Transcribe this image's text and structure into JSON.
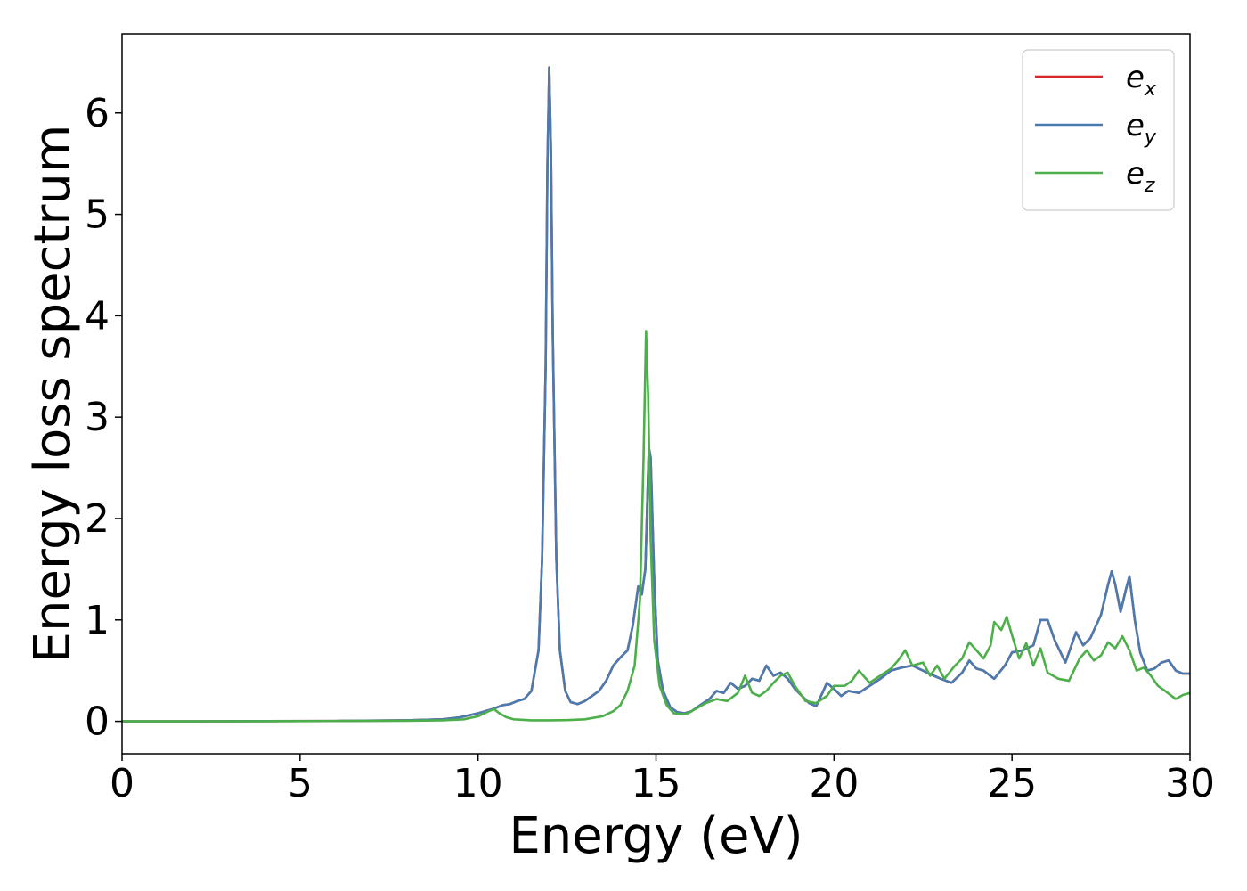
{
  "chart_data": {
    "type": "line",
    "title": "",
    "xlabel": "Energy (eV)",
    "ylabel": "Energy loss spectrum",
    "xlim": [
      0,
      30
    ],
    "ylim": [
      -0.32,
      6.78
    ],
    "xticks": [
      0,
      5,
      10,
      15,
      20,
      25,
      30
    ],
    "yticks": [
      0,
      1,
      2,
      3,
      4,
      5,
      6
    ],
    "grid": false,
    "legend_position": "top-right",
    "series": [
      {
        "name": "e_x",
        "legend_base": "e",
        "legend_sub": "x",
        "color": "#d62728",
        "points": [
          [
            0,
            0.0
          ],
          [
            2,
            0.0
          ],
          [
            4,
            0.002
          ],
          [
            6,
            0.004
          ],
          [
            8,
            0.01
          ],
          [
            9,
            0.02
          ],
          [
            9.5,
            0.04
          ],
          [
            10,
            0.08
          ],
          [
            10.4,
            0.12
          ],
          [
            10.7,
            0.16
          ],
          [
            10.9,
            0.17
          ],
          [
            11.1,
            0.2
          ],
          [
            11.3,
            0.22
          ],
          [
            11.5,
            0.3
          ],
          [
            11.7,
            0.7
          ],
          [
            11.8,
            1.6
          ],
          [
            11.9,
            3.5
          ],
          [
            11.95,
            5.5
          ],
          [
            12.0,
            6.45
          ],
          [
            12.05,
            5.6
          ],
          [
            12.1,
            3.8
          ],
          [
            12.2,
            1.6
          ],
          [
            12.3,
            0.7
          ],
          [
            12.45,
            0.3
          ],
          [
            12.6,
            0.19
          ],
          [
            12.8,
            0.17
          ],
          [
            13.0,
            0.2
          ],
          [
            13.2,
            0.25
          ],
          [
            13.4,
            0.3
          ],
          [
            13.6,
            0.4
          ],
          [
            13.8,
            0.55
          ],
          [
            14.0,
            0.63
          ],
          [
            14.2,
            0.7
          ],
          [
            14.35,
            0.95
          ],
          [
            14.5,
            1.33
          ],
          [
            14.6,
            1.25
          ],
          [
            14.7,
            1.5
          ],
          [
            14.8,
            2.7
          ],
          [
            14.85,
            2.6
          ],
          [
            14.95,
            1.4
          ],
          [
            15.05,
            0.6
          ],
          [
            15.2,
            0.3
          ],
          [
            15.4,
            0.14
          ],
          [
            15.6,
            0.09
          ],
          [
            15.8,
            0.08
          ],
          [
            16.0,
            0.1
          ],
          [
            16.2,
            0.15
          ],
          [
            16.5,
            0.22
          ],
          [
            16.7,
            0.3
          ],
          [
            16.9,
            0.28
          ],
          [
            17.1,
            0.38
          ],
          [
            17.3,
            0.32
          ],
          [
            17.5,
            0.35
          ],
          [
            17.7,
            0.42
          ],
          [
            17.9,
            0.4
          ],
          [
            18.1,
            0.55
          ],
          [
            18.3,
            0.45
          ],
          [
            18.5,
            0.48
          ],
          [
            18.7,
            0.42
          ],
          [
            18.9,
            0.32
          ],
          [
            19.1,
            0.25
          ],
          [
            19.3,
            0.18
          ],
          [
            19.5,
            0.15
          ],
          [
            19.7,
            0.3
          ],
          [
            19.8,
            0.38
          ],
          [
            20.0,
            0.32
          ],
          [
            20.2,
            0.25
          ],
          [
            20.4,
            0.3
          ],
          [
            20.7,
            0.28
          ],
          [
            21.0,
            0.35
          ],
          [
            21.3,
            0.42
          ],
          [
            21.6,
            0.5
          ],
          [
            21.9,
            0.53
          ],
          [
            22.2,
            0.55
          ],
          [
            22.5,
            0.5
          ],
          [
            22.8,
            0.45
          ],
          [
            23.0,
            0.42
          ],
          [
            23.3,
            0.38
          ],
          [
            23.6,
            0.48
          ],
          [
            23.8,
            0.6
          ],
          [
            24.0,
            0.52
          ],
          [
            24.2,
            0.5
          ],
          [
            24.5,
            0.42
          ],
          [
            24.8,
            0.55
          ],
          [
            25.0,
            0.68
          ],
          [
            25.3,
            0.7
          ],
          [
            25.6,
            0.75
          ],
          [
            25.8,
            1.0
          ],
          [
            26.0,
            1.0
          ],
          [
            26.2,
            0.8
          ],
          [
            26.5,
            0.58
          ],
          [
            26.8,
            0.88
          ],
          [
            27.0,
            0.75
          ],
          [
            27.2,
            0.82
          ],
          [
            27.5,
            1.05
          ],
          [
            27.7,
            1.35
          ],
          [
            27.8,
            1.48
          ],
          [
            27.9,
            1.35
          ],
          [
            28.05,
            1.08
          ],
          [
            28.2,
            1.3
          ],
          [
            28.3,
            1.43
          ],
          [
            28.45,
            1.0
          ],
          [
            28.6,
            0.68
          ],
          [
            28.8,
            0.5
          ],
          [
            29.0,
            0.52
          ],
          [
            29.2,
            0.58
          ],
          [
            29.4,
            0.6
          ],
          [
            29.6,
            0.5
          ],
          [
            29.8,
            0.47
          ],
          [
            30.0,
            0.47
          ]
        ]
      },
      {
        "name": "e_y",
        "legend_base": "e",
        "legend_sub": "y",
        "color": "#4a7bb0",
        "points": [
          [
            0,
            0.0
          ],
          [
            2,
            0.0
          ],
          [
            4,
            0.002
          ],
          [
            6,
            0.004
          ],
          [
            8,
            0.01
          ],
          [
            9,
            0.02
          ],
          [
            9.5,
            0.04
          ],
          [
            10,
            0.08
          ],
          [
            10.4,
            0.12
          ],
          [
            10.7,
            0.16
          ],
          [
            10.9,
            0.17
          ],
          [
            11.1,
            0.2
          ],
          [
            11.3,
            0.22
          ],
          [
            11.5,
            0.3
          ],
          [
            11.7,
            0.7
          ],
          [
            11.8,
            1.6
          ],
          [
            11.9,
            3.5
          ],
          [
            11.95,
            5.5
          ],
          [
            12.0,
            6.45
          ],
          [
            12.05,
            5.6
          ],
          [
            12.1,
            3.8
          ],
          [
            12.2,
            1.6
          ],
          [
            12.3,
            0.7
          ],
          [
            12.45,
            0.3
          ],
          [
            12.6,
            0.19
          ],
          [
            12.8,
            0.17
          ],
          [
            13.0,
            0.2
          ],
          [
            13.2,
            0.25
          ],
          [
            13.4,
            0.3
          ],
          [
            13.6,
            0.4
          ],
          [
            13.8,
            0.55
          ],
          [
            14.0,
            0.63
          ],
          [
            14.2,
            0.7
          ],
          [
            14.35,
            0.95
          ],
          [
            14.5,
            1.33
          ],
          [
            14.6,
            1.25
          ],
          [
            14.7,
            1.5
          ],
          [
            14.8,
            2.7
          ],
          [
            14.85,
            2.6
          ],
          [
            14.95,
            1.4
          ],
          [
            15.05,
            0.6
          ],
          [
            15.2,
            0.3
          ],
          [
            15.4,
            0.14
          ],
          [
            15.6,
            0.09
          ],
          [
            15.8,
            0.08
          ],
          [
            16.0,
            0.1
          ],
          [
            16.2,
            0.15
          ],
          [
            16.5,
            0.22
          ],
          [
            16.7,
            0.3
          ],
          [
            16.9,
            0.28
          ],
          [
            17.1,
            0.38
          ],
          [
            17.3,
            0.32
          ],
          [
            17.5,
            0.35
          ],
          [
            17.7,
            0.42
          ],
          [
            17.9,
            0.4
          ],
          [
            18.1,
            0.55
          ],
          [
            18.3,
            0.45
          ],
          [
            18.5,
            0.48
          ],
          [
            18.7,
            0.42
          ],
          [
            18.9,
            0.32
          ],
          [
            19.1,
            0.25
          ],
          [
            19.3,
            0.18
          ],
          [
            19.5,
            0.15
          ],
          [
            19.7,
            0.3
          ],
          [
            19.8,
            0.38
          ],
          [
            20.0,
            0.32
          ],
          [
            20.2,
            0.25
          ],
          [
            20.4,
            0.3
          ],
          [
            20.7,
            0.28
          ],
          [
            21.0,
            0.35
          ],
          [
            21.3,
            0.42
          ],
          [
            21.6,
            0.5
          ],
          [
            21.9,
            0.53
          ],
          [
            22.2,
            0.55
          ],
          [
            22.5,
            0.5
          ],
          [
            22.8,
            0.45
          ],
          [
            23.0,
            0.42
          ],
          [
            23.3,
            0.38
          ],
          [
            23.6,
            0.48
          ],
          [
            23.8,
            0.6
          ],
          [
            24.0,
            0.52
          ],
          [
            24.2,
            0.5
          ],
          [
            24.5,
            0.42
          ],
          [
            24.8,
            0.55
          ],
          [
            25.0,
            0.68
          ],
          [
            25.3,
            0.7
          ],
          [
            25.6,
            0.75
          ],
          [
            25.8,
            1.0
          ],
          [
            26.0,
            1.0
          ],
          [
            26.2,
            0.8
          ],
          [
            26.5,
            0.58
          ],
          [
            26.8,
            0.88
          ],
          [
            27.0,
            0.75
          ],
          [
            27.2,
            0.82
          ],
          [
            27.5,
            1.05
          ],
          [
            27.7,
            1.35
          ],
          [
            27.8,
            1.48
          ],
          [
            27.9,
            1.35
          ],
          [
            28.05,
            1.08
          ],
          [
            28.2,
            1.3
          ],
          [
            28.3,
            1.43
          ],
          [
            28.45,
            1.0
          ],
          [
            28.6,
            0.68
          ],
          [
            28.8,
            0.5
          ],
          [
            29.0,
            0.52
          ],
          [
            29.2,
            0.58
          ],
          [
            29.4,
            0.6
          ],
          [
            29.6,
            0.5
          ],
          [
            29.8,
            0.47
          ],
          [
            30.0,
            0.47
          ]
        ]
      },
      {
        "name": "e_z",
        "legend_base": "e",
        "legend_sub": "z",
        "color": "#4daf4a",
        "points": [
          [
            0,
            0.0
          ],
          [
            2,
            0.0
          ],
          [
            4,
            0.001
          ],
          [
            6,
            0.003
          ],
          [
            8,
            0.006
          ],
          [
            9,
            0.01
          ],
          [
            9.6,
            0.02
          ],
          [
            10.0,
            0.05
          ],
          [
            10.3,
            0.1
          ],
          [
            10.45,
            0.12
          ],
          [
            10.6,
            0.08
          ],
          [
            10.8,
            0.04
          ],
          [
            11.0,
            0.02
          ],
          [
            11.5,
            0.01
          ],
          [
            12.0,
            0.01
          ],
          [
            12.5,
            0.012
          ],
          [
            13.0,
            0.02
          ],
          [
            13.5,
            0.05
          ],
          [
            13.8,
            0.1
          ],
          [
            14.0,
            0.16
          ],
          [
            14.2,
            0.3
          ],
          [
            14.4,
            0.55
          ],
          [
            14.55,
            1.2
          ],
          [
            14.65,
            2.6
          ],
          [
            14.72,
            3.85
          ],
          [
            14.78,
            3.2
          ],
          [
            14.85,
            1.8
          ],
          [
            14.95,
            0.8
          ],
          [
            15.1,
            0.35
          ],
          [
            15.3,
            0.16
          ],
          [
            15.5,
            0.08
          ],
          [
            15.7,
            0.07
          ],
          [
            15.9,
            0.08
          ],
          [
            16.1,
            0.12
          ],
          [
            16.4,
            0.18
          ],
          [
            16.7,
            0.22
          ],
          [
            17.0,
            0.2
          ],
          [
            17.3,
            0.28
          ],
          [
            17.5,
            0.45
          ],
          [
            17.7,
            0.28
          ],
          [
            17.9,
            0.25
          ],
          [
            18.1,
            0.3
          ],
          [
            18.3,
            0.38
          ],
          [
            18.5,
            0.45
          ],
          [
            18.7,
            0.48
          ],
          [
            18.9,
            0.35
          ],
          [
            19.2,
            0.2
          ],
          [
            19.5,
            0.18
          ],
          [
            19.8,
            0.25
          ],
          [
            20.0,
            0.35
          ],
          [
            20.3,
            0.35
          ],
          [
            20.5,
            0.4
          ],
          [
            20.7,
            0.5
          ],
          [
            21.0,
            0.38
          ],
          [
            21.3,
            0.45
          ],
          [
            21.6,
            0.52
          ],
          [
            21.8,
            0.6
          ],
          [
            22.0,
            0.7
          ],
          [
            22.2,
            0.55
          ],
          [
            22.5,
            0.58
          ],
          [
            22.7,
            0.45
          ],
          [
            22.9,
            0.55
          ],
          [
            23.1,
            0.42
          ],
          [
            23.4,
            0.55
          ],
          [
            23.6,
            0.62
          ],
          [
            23.8,
            0.78
          ],
          [
            24.0,
            0.7
          ],
          [
            24.2,
            0.62
          ],
          [
            24.4,
            0.75
          ],
          [
            24.5,
            0.98
          ],
          [
            24.7,
            0.9
          ],
          [
            24.85,
            1.03
          ],
          [
            25.0,
            0.85
          ],
          [
            25.2,
            0.62
          ],
          [
            25.4,
            0.77
          ],
          [
            25.6,
            0.55
          ],
          [
            25.8,
            0.72
          ],
          [
            26.0,
            0.48
          ],
          [
            26.3,
            0.42
          ],
          [
            26.6,
            0.4
          ],
          [
            26.9,
            0.62
          ],
          [
            27.1,
            0.7
          ],
          [
            27.3,
            0.6
          ],
          [
            27.5,
            0.65
          ],
          [
            27.7,
            0.78
          ],
          [
            27.9,
            0.72
          ],
          [
            28.1,
            0.84
          ],
          [
            28.3,
            0.7
          ],
          [
            28.5,
            0.5
          ],
          [
            28.7,
            0.53
          ],
          [
            28.9,
            0.45
          ],
          [
            29.1,
            0.35
          ],
          [
            29.3,
            0.3
          ],
          [
            29.6,
            0.22
          ],
          [
            29.8,
            0.26
          ],
          [
            30.0,
            0.28
          ]
        ]
      }
    ]
  }
}
